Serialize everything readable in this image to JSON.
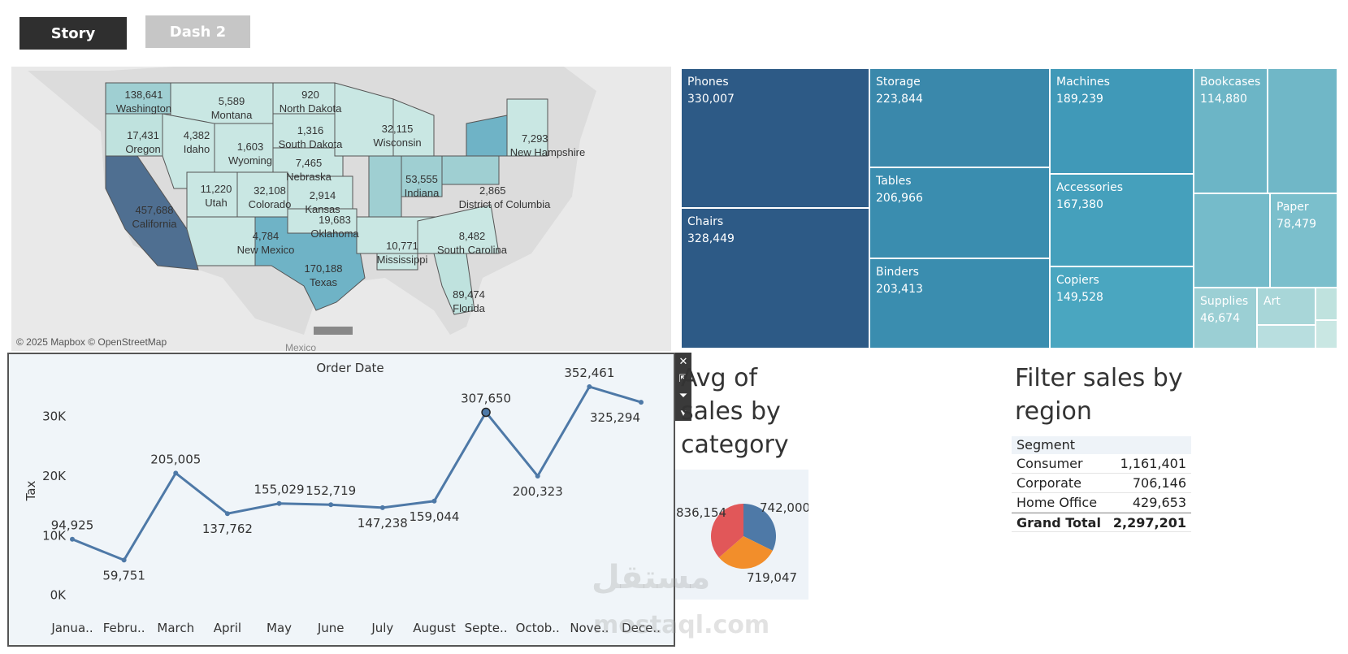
{
  "tabs": [
    {
      "label": "Story",
      "active": true
    },
    {
      "label": "Dash 2",
      "active": false
    }
  ],
  "map": {
    "attribution": "© 2025 Mapbox © OpenStreetMap",
    "country_label": "Mexico",
    "states": [
      {
        "name": "Washington",
        "value": "138,641"
      },
      {
        "name": "Montana",
        "value": "5,589"
      },
      {
        "name": "North Dakota",
        "value": "920"
      },
      {
        "name": "Oregon",
        "value": "17,431"
      },
      {
        "name": "Idaho",
        "value": "4,382"
      },
      {
        "name": "Wyoming",
        "value": "1,603"
      },
      {
        "name": "South Dakota",
        "value": "1,316"
      },
      {
        "name": "Wisconsin",
        "value": "32,115"
      },
      {
        "name": "New Hampshire",
        "value": "7,293"
      },
      {
        "name": "Nebraska",
        "value": "7,465"
      },
      {
        "name": "Utah",
        "value": "11,220"
      },
      {
        "name": "Colorado",
        "value": "32,108"
      },
      {
        "name": "Kansas",
        "value": "2,914"
      },
      {
        "name": "Indiana",
        "value": "53,555"
      },
      {
        "name": "District of Columbia",
        "value": "2,865"
      },
      {
        "name": "California",
        "value": "457,688"
      },
      {
        "name": "Oklahoma",
        "value": "19,683"
      },
      {
        "name": "New Mexico",
        "value": "4,784"
      },
      {
        "name": "Mississippi",
        "value": "10,771"
      },
      {
        "name": "South Carolina",
        "value": "8,482"
      },
      {
        "name": "Texas",
        "value": "170,188"
      },
      {
        "name": "Florida",
        "value": "89,474"
      }
    ]
  },
  "treemap": [
    {
      "name": "Phones",
      "value": "330,007",
      "color": "#2d5a86"
    },
    {
      "name": "Chairs",
      "value": "328,449",
      "color": "#2d5a86"
    },
    {
      "name": "Storage",
      "value": "223,844",
      "color": "#3a88ab"
    },
    {
      "name": "Tables",
      "value": "206,966",
      "color": "#3a8daf"
    },
    {
      "name": "Binders",
      "value": "203,413",
      "color": "#3a8daf"
    },
    {
      "name": "Machines",
      "value": "189,239",
      "color": "#4099b8"
    },
    {
      "name": "Accessories",
      "value": "167,380",
      "color": "#45a0bc"
    },
    {
      "name": "Copiers",
      "value": "149,528",
      "color": "#4aa6c0"
    },
    {
      "name": "Bookcases",
      "value": "114,880",
      "color": "#6cb5c6"
    },
    {
      "name": "Paper",
      "value": "78,479",
      "color": "#7bbfcc"
    },
    {
      "name": "Supplies",
      "value": "46,674",
      "color": "#9bcfd4"
    },
    {
      "name": "Art",
      "value": "",
      "color": "#a8d6d8"
    }
  ],
  "line_chart": {
    "title": "Order Date",
    "ylabel": "Tax",
    "y_ticks": [
      "30K",
      "20K",
      "10K",
      "0K"
    ],
    "months": [
      "Janua..",
      "Febru..",
      "March",
      "April",
      "May",
      "June",
      "July",
      "August",
      "Septe..",
      "Octob..",
      "Nove..",
      "Dece.."
    ],
    "point_labels": [
      "94,925",
      "59,751",
      "205,005",
      "137,762",
      "155,029",
      "152,719",
      "147,238",
      "159,044",
      "307,650",
      "200,323",
      "352,461",
      "325,294"
    ],
    "tax_values": [
      9400,
      5900,
      20500,
      13700,
      15400,
      15200,
      14700,
      15800,
      30700,
      20000,
      35000,
      32400
    ],
    "line_color": "#4e79a7"
  },
  "pie": {
    "title": "Avg of\nsales by\ncategory",
    "slices": [
      {
        "label": "742,000",
        "value": 742000,
        "color": "#4e79a7"
      },
      {
        "label": "719,047",
        "value": 719047,
        "color": "#f28e2b"
      },
      {
        "label": "836,154",
        "value": 836154,
        "color": "#e15759"
      }
    ]
  },
  "region_filter": {
    "title": "Filter sales by region",
    "header": "Segment",
    "rows": [
      {
        "segment": "Consumer",
        "value": "1,161,401"
      },
      {
        "segment": "Corporate",
        "value": "706,146"
      },
      {
        "segment": "Home Office",
        "value": "429,653"
      }
    ],
    "total": {
      "segment": "Grand Total",
      "value": "2,297,201"
    }
  },
  "watermark": {
    "arabic": "مستقل",
    "latin": "mostaql.com"
  }
}
